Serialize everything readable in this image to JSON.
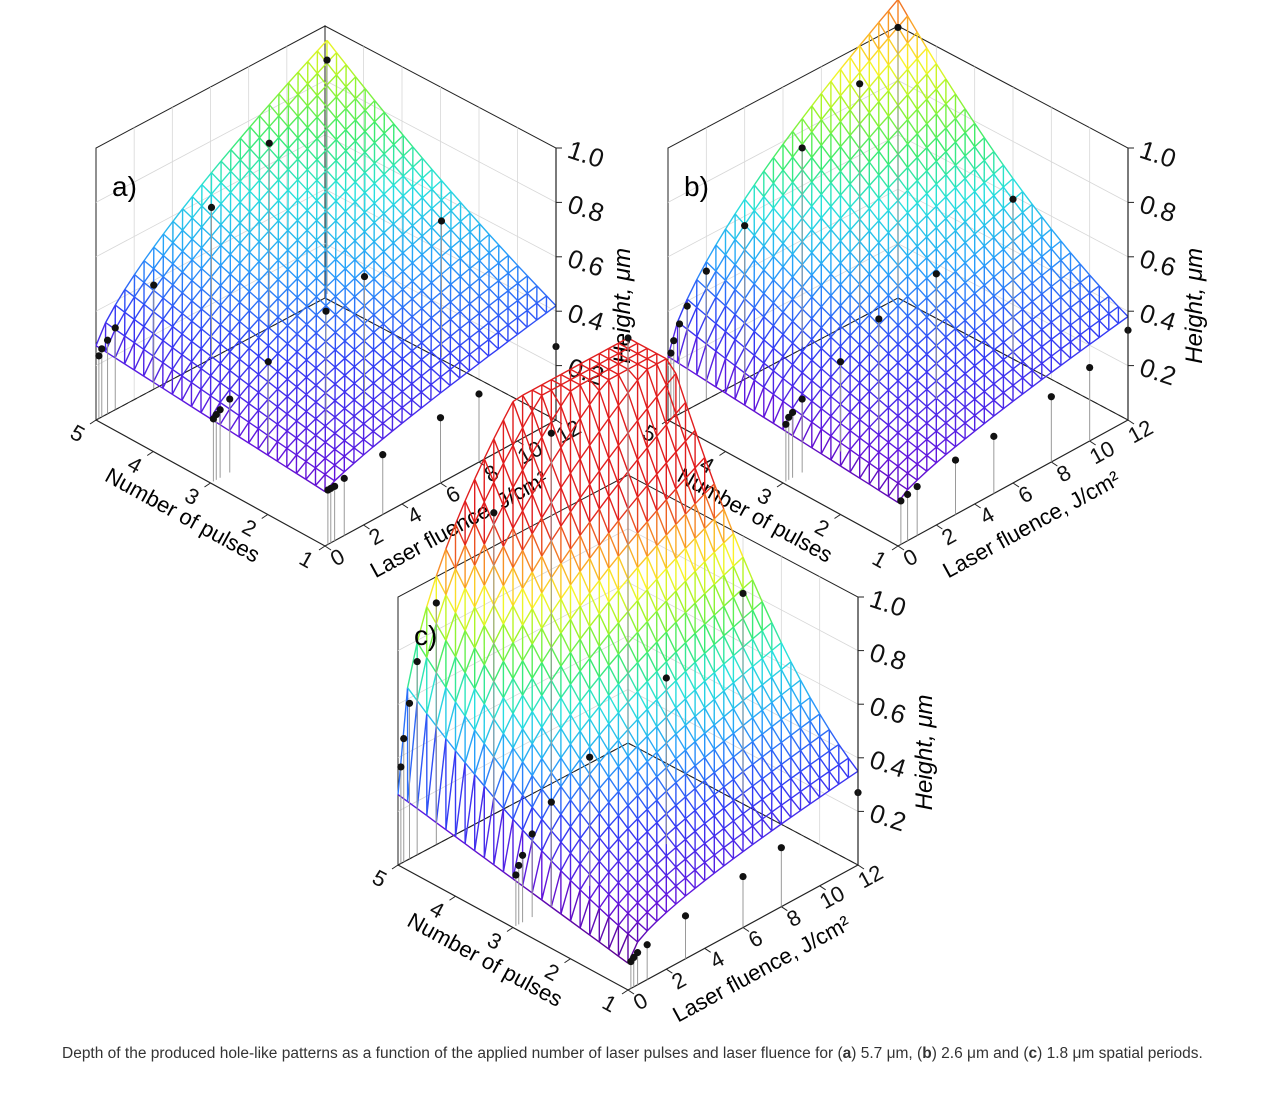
{
  "caption": {
    "pre": "Depth of the produced hole-like patterns as a function of the applied number of laser pulses and laser fluence for (",
    "a": "a",
    "mid1": ") 5.7 μm, (",
    "b": "b",
    "mid2": ") 2.6 μm and (",
    "c": "c",
    "post": ") 1.8 μm spatial periods."
  },
  "chart_data": [
    {
      "type": "surface3d",
      "panel_label": "a)",
      "xlabel": "Laser fluence, J/cm²",
      "ylabel": "Number of pulses",
      "zlabel": "Height, μm",
      "x_ticks": [
        "0",
        "2",
        "4",
        "6",
        "8",
        "10",
        "12"
      ],
      "y_ticks": [
        "1",
        "2",
        "3",
        "4",
        "5"
      ],
      "z_ticks": [
        "0.2",
        "0.4",
        "0.6",
        "0.8",
        "1.0"
      ],
      "xlim": [
        0,
        12
      ],
      "ylim": [
        1,
        5
      ],
      "zlim": [
        0,
        1.0
      ],
      "surface": {
        "base": 0.2,
        "fluence_gain": 0.22,
        "pulse_gain": 0.18,
        "cross": 0.11,
        "fluence_power": 0.75
      },
      "points": [
        {
          "fluence": 12,
          "pulses": 5,
          "height": 0.86
        },
        {
          "fluence": 9,
          "pulses": 5,
          "height": 0.67
        },
        {
          "fluence": 12,
          "pulses": 3,
          "height": 0.5
        },
        {
          "fluence": 12,
          "pulses": 1,
          "height": 0.27
        },
        {
          "fluence": 6,
          "pulses": 5,
          "height": 0.55
        },
        {
          "fluence": 3,
          "pulses": 5,
          "height": 0.38
        },
        {
          "fluence": 1,
          "pulses": 5,
          "height": 0.3
        },
        {
          "fluence": 0.6,
          "pulses": 5,
          "height": 0.27
        },
        {
          "fluence": 0.3,
          "pulses": 5,
          "height": 0.25
        },
        {
          "fluence": 0.15,
          "pulses": 5,
          "height": 0.23
        },
        {
          "fluence": 8,
          "pulses": 3,
          "height": 0.45
        },
        {
          "fluence": 6,
          "pulses": 3,
          "height": 0.4
        },
        {
          "fluence": 3,
          "pulses": 3,
          "height": 0.33
        },
        {
          "fluence": 1,
          "pulses": 3,
          "height": 0.27
        },
        {
          "fluence": 0.5,
          "pulses": 3,
          "height": 0.25
        },
        {
          "fluence": 0.3,
          "pulses": 3,
          "height": 0.24
        },
        {
          "fluence": 0.15,
          "pulses": 3,
          "height": 0.23
        },
        {
          "fluence": 8,
          "pulses": 1,
          "height": 0.25
        },
        {
          "fluence": 6,
          "pulses": 1,
          "height": 0.24
        },
        {
          "fluence": 3,
          "pulses": 1,
          "height": 0.22
        },
        {
          "fluence": 1,
          "pulses": 1,
          "height": 0.21
        },
        {
          "fluence": 0.5,
          "pulses": 1,
          "height": 0.2
        },
        {
          "fluence": 0.3,
          "pulses": 1,
          "height": 0.2
        },
        {
          "fluence": 0.15,
          "pulses": 1,
          "height": 0.2
        }
      ]
    },
    {
      "type": "surface3d",
      "panel_label": "b)",
      "xlabel": "Laser fluence, J/cm²",
      "ylabel": "Number of pulses",
      "zlabel": "Height, μm",
      "x_ticks": [
        "0",
        "2",
        "4",
        "6",
        "8",
        "10",
        "12"
      ],
      "y_ticks": [
        "1",
        "2",
        "3",
        "4",
        "5"
      ],
      "z_ticks": [
        "0.2",
        "0.4",
        "0.6",
        "0.8",
        "1.0"
      ],
      "xlim": [
        0,
        12
      ],
      "ylim": [
        1,
        5
      ],
      "zlim": [
        0,
        1.0
      ],
      "surface": {
        "base": 0.16,
        "fluence_gain": 0.22,
        "pulse_gain": 0.18,
        "cross": 0.3,
        "fluence_power": 0.65
      },
      "points": [
        {
          "fluence": 12,
          "pulses": 5,
          "height": 0.98
        },
        {
          "fluence": 10,
          "pulses": 5,
          "height": 0.85
        },
        {
          "fluence": 7,
          "pulses": 5,
          "height": 0.73
        },
        {
          "fluence": 4,
          "pulses": 5,
          "height": 0.56
        },
        {
          "fluence": 2,
          "pulses": 5,
          "height": 0.47
        },
        {
          "fluence": 1,
          "pulses": 5,
          "height": 0.38
        },
        {
          "fluence": 0.6,
          "pulses": 5,
          "height": 0.33
        },
        {
          "fluence": 0.3,
          "pulses": 5,
          "height": 0.28
        },
        {
          "fluence": 0.15,
          "pulses": 5,
          "height": 0.24
        },
        {
          "fluence": 12,
          "pulses": 3,
          "height": 0.58
        },
        {
          "fluence": 8,
          "pulses": 3,
          "height": 0.46
        },
        {
          "fluence": 5,
          "pulses": 3,
          "height": 0.41
        },
        {
          "fluence": 3,
          "pulses": 3,
          "height": 0.33
        },
        {
          "fluence": 1,
          "pulses": 3,
          "height": 0.27
        },
        {
          "fluence": 0.5,
          "pulses": 3,
          "height": 0.24
        },
        {
          "fluence": 0.3,
          "pulses": 3,
          "height": 0.23
        },
        {
          "fluence": 0.15,
          "pulses": 3,
          "height": 0.21
        },
        {
          "fluence": 12,
          "pulses": 1,
          "height": 0.33
        },
        {
          "fluence": 10,
          "pulses": 1,
          "height": 0.27
        },
        {
          "fluence": 8,
          "pulses": 1,
          "height": 0.24
        },
        {
          "fluence": 5,
          "pulses": 1,
          "height": 0.21
        },
        {
          "fluence": 3,
          "pulses": 1,
          "height": 0.2
        },
        {
          "fluence": 1,
          "pulses": 1,
          "height": 0.18
        },
        {
          "fluence": 0.5,
          "pulses": 1,
          "height": 0.17
        },
        {
          "fluence": 0.15,
          "pulses": 1,
          "height": 0.16
        }
      ]
    },
    {
      "type": "surface3d",
      "panel_label": "c)",
      "xlabel": "Laser fluence, J/cm²",
      "ylabel": "Number of pulses",
      "zlabel": "Height, μm",
      "x_ticks": [
        "0",
        "2",
        "4",
        "6",
        "8",
        "10",
        "12"
      ],
      "y_ticks": [
        "1",
        "2",
        "3",
        "4",
        "5"
      ],
      "z_ticks": [
        "0.2",
        "0.4",
        "0.6",
        "0.8",
        "1.0"
      ],
      "xlim": [
        0,
        12
      ],
      "ylim": [
        1,
        5
      ],
      "zlim": [
        0,
        1.0
      ],
      "surface": {
        "base": 0.1,
        "fluence_gain": 0.25,
        "pulse_gain": 0.4,
        "cross": 0.95,
        "fluence_power": 0.45
      },
      "points": [
        {
          "fluence": 12,
          "pulses": 5,
          "height": 1.5
        },
        {
          "fluence": 8,
          "pulses": 5,
          "height": 1.3
        },
        {
          "fluence": 5,
          "pulses": 5,
          "height": 1.12
        },
        {
          "fluence": 2,
          "pulses": 5,
          "height": 0.9
        },
        {
          "fluence": 1,
          "pulses": 5,
          "height": 0.72
        },
        {
          "fluence": 0.6,
          "pulses": 5,
          "height": 0.58
        },
        {
          "fluence": 0.3,
          "pulses": 5,
          "height": 0.46
        },
        {
          "fluence": 0.15,
          "pulses": 5,
          "height": 0.36
        },
        {
          "fluence": 12,
          "pulses": 3,
          "height": 0.78
        },
        {
          "fluence": 8,
          "pulses": 3,
          "height": 0.62
        },
        {
          "fluence": 4,
          "pulses": 3,
          "height": 0.48
        },
        {
          "fluence": 2,
          "pulses": 3,
          "height": 0.39
        },
        {
          "fluence": 1,
          "pulses": 3,
          "height": 0.31
        },
        {
          "fluence": 0.5,
          "pulses": 3,
          "height": 0.25
        },
        {
          "fluence": 0.3,
          "pulses": 3,
          "height": 0.22
        },
        {
          "fluence": 0.15,
          "pulses": 3,
          "height": 0.19
        },
        {
          "fluence": 12,
          "pulses": 1,
          "height": 0.27
        },
        {
          "fluence": 8,
          "pulses": 1,
          "height": 0.22
        },
        {
          "fluence": 6,
          "pulses": 1,
          "height": 0.19
        },
        {
          "fluence": 3,
          "pulses": 1,
          "height": 0.16
        },
        {
          "fluence": 1,
          "pulses": 1,
          "height": 0.13
        },
        {
          "fluence": 0.5,
          "pulses": 1,
          "height": 0.12
        },
        {
          "fluence": 0.3,
          "pulses": 1,
          "height": 0.11
        },
        {
          "fluence": 0.15,
          "pulses": 1,
          "height": 0.1
        }
      ]
    }
  ]
}
